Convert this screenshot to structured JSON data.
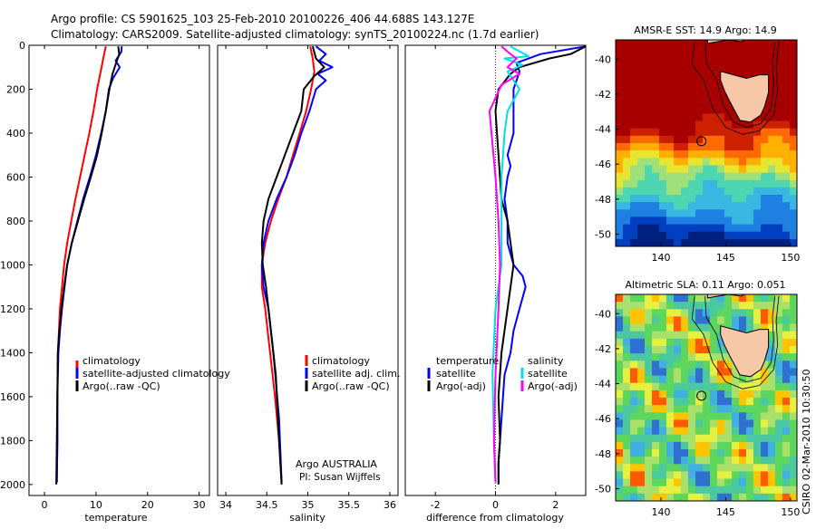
{
  "header": {
    "line1": "Argo profile: CS 5901625_103 25-Feb-2010 20100226_406 44.688S 143.127E",
    "line2": "Climatology: CARS2009. Satellite-adjusted climatology: synTS_20100224.nc (1.7d earlier)"
  },
  "credits": {
    "line1": "Argo AUSTRALIA",
    "line2": "PI: Susan Wijffels",
    "side": "CSIRO 02-Mar-2010 10:30:50"
  },
  "colors": {
    "climatology": "#ff0000",
    "satellite": "#0000ff",
    "argo": "#000000",
    "sal_satellite": "#00e0e0",
    "sal_argo": "#ff00ff"
  },
  "chart_data": [
    {
      "type": "line",
      "xlabel": "temperature",
      "ylabel": "",
      "xlim": [
        -3,
        32
      ],
      "ylim": [
        2050,
        0
      ],
      "xticks": [
        "0",
        "10",
        "20",
        "30"
      ],
      "yticks": [
        "0",
        "200",
        "400",
        "600",
        "800",
        "1000",
        "1200",
        "1400",
        "1600",
        "1800",
        "2000"
      ],
      "legend_position": "bottom-center",
      "series": [
        {
          "name": "climatology",
          "x": [
            11.9,
            11.5,
            10.9,
            10.2,
            9.5,
            8.7,
            7.8,
            6.9,
            6.0,
            5.2,
            4.4,
            3.8,
            3.4,
            3.0,
            2.8,
            2.6,
            2.5,
            2.5,
            2.4
          ],
          "y": [
            5,
            50,
            120,
            200,
            300,
            400,
            500,
            600,
            700,
            800,
            900,
            1000,
            1100,
            1200,
            1300,
            1400,
            1600,
            1800,
            1990
          ]
        },
        {
          "name": "satellite-adjusted climatology",
          "x": [
            15.0,
            14.9,
            13.8,
            14.6,
            13.3,
            12.5,
            11.9,
            11.0,
            10.0,
            8.8,
            7.5,
            6.4,
            5.3,
            4.4,
            3.9,
            3.4,
            3.0,
            2.7,
            2.5,
            2.5,
            2.4
          ],
          "y": [
            5,
            30,
            70,
            100,
            150,
            200,
            300,
            400,
            500,
            600,
            700,
            800,
            900,
            1000,
            1100,
            1200,
            1300,
            1400,
            1600,
            1800,
            1990
          ]
        },
        {
          "name": "Argo(..raw -QC)",
          "x": [
            14.3,
            14.5,
            13.9,
            13.2,
            12.6,
            11.9,
            11.1,
            10.2,
            9.0,
            7.7,
            6.5,
            5.3,
            4.4,
            3.8,
            3.3,
            2.9,
            2.6,
            2.5,
            2.4,
            2.3
          ],
          "y": [
            5,
            40,
            80,
            130,
            200,
            300,
            400,
            500,
            600,
            700,
            800,
            900,
            1000,
            1100,
            1200,
            1300,
            1400,
            1600,
            1800,
            2000
          ]
        }
      ]
    },
    {
      "type": "line",
      "xlabel": "salinity",
      "ylabel": "",
      "xlim": [
        33.9,
        36.1
      ],
      "ylim": [
        2050,
        0
      ],
      "xticks": [
        "34",
        "34.5",
        "35",
        "35.5",
        "36"
      ],
      "legend_position": "bottom-center",
      "series": [
        {
          "name": "climatology",
          "x": [
            35.03,
            35.06,
            35.08,
            35.04,
            34.98,
            34.9,
            34.82,
            34.74,
            34.64,
            34.55,
            34.48,
            34.44,
            34.44,
            34.48,
            34.54,
            34.6,
            34.65,
            34.68
          ],
          "y": [
            5,
            60,
            120,
            200,
            300,
            400,
            500,
            600,
            700,
            800,
            900,
            1000,
            1100,
            1200,
            1400,
            1600,
            1800,
            1990
          ]
        },
        {
          "name": "satellite adj. clim.",
          "x": [
            35.1,
            35.22,
            35.14,
            35.3,
            35.12,
            35.22,
            35.1,
            35.02,
            34.92,
            34.84,
            34.74,
            34.62,
            34.52,
            34.46,
            34.44,
            34.46,
            34.52,
            34.58,
            34.65,
            34.68
          ],
          "y": [
            5,
            40,
            70,
            100,
            130,
            160,
            200,
            300,
            400,
            500,
            600,
            700,
            800,
            900,
            1000,
            1100,
            1200,
            1400,
            1700,
            1990
          ]
        },
        {
          "name": "Argo(..raw -QC)",
          "x": [
            35.06,
            35.1,
            35.2,
            35.08,
            34.95,
            34.92,
            34.82,
            34.72,
            34.62,
            34.52,
            34.46,
            34.44,
            34.45,
            34.49,
            34.55,
            34.61,
            34.65,
            34.68
          ],
          "y": [
            5,
            60,
            100,
            140,
            200,
            300,
            400,
            500,
            600,
            700,
            800,
            900,
            1000,
            1100,
            1300,
            1500,
            1800,
            2000
          ]
        }
      ]
    },
    {
      "type": "line",
      "xlabel": "difference from climatology",
      "ylabel": "",
      "xlim": [
        -3,
        3
      ],
      "ylim": [
        2050,
        0
      ],
      "xticks": [
        "-2",
        "0",
        "2"
      ],
      "legend_position": "bottom-center",
      "legend_titles": [
        "temperature",
        "salinity"
      ],
      "series": [
        {
          "name": "temperature satellite",
          "x": [
            3.0,
            1.5,
            0.7,
            0.8,
            0.6,
            0.6,
            0.4,
            0.5,
            0.4,
            0.3,
            0.4,
            0.4,
            0.5,
            0.6,
            0.9,
            1.0,
            0.8,
            0.6,
            0.5,
            0.3,
            0.25,
            0.15,
            0.1,
            0.1
          ],
          "y": [
            5,
            40,
            80,
            120,
            200,
            400,
            500,
            550,
            600,
            700,
            800,
            900,
            950,
            1000,
            1050,
            1100,
            1200,
            1300,
            1400,
            1500,
            1600,
            1800,
            1900,
            1990
          ]
        },
        {
          "name": "temperature Argo(-adj)",
          "x": [
            3.0,
            2.5,
            1.8,
            0.8,
            0.5,
            0.1,
            0.0,
            0.1,
            0.2,
            0.4,
            0.5,
            0.6,
            0.5,
            0.4,
            0.2,
            0.1,
            0.15,
            0.1,
            0.1
          ],
          "y": [
            5,
            40,
            60,
            100,
            130,
            200,
            300,
            500,
            700,
            800,
            900,
            1000,
            1100,
            1200,
            1400,
            1600,
            1800,
            1900,
            2000
          ]
        },
        {
          "name": "salinity satellite",
          "x": [
            0.5,
            1.1,
            0.3,
            0.9,
            0.4,
            0.8,
            0.6,
            0.4,
            0.3,
            0.2,
            0.2,
            0.0,
            -0.1,
            -0.05,
            0.0
          ],
          "y": [
            5,
            50,
            60,
            90,
            120,
            200,
            250,
            300,
            400,
            600,
            1000,
            1200,
            1500,
            1800,
            1990
          ]
        },
        {
          "name": "salinity Argo(-adj)",
          "x": [
            0.2,
            0.5,
            0.7,
            0.4,
            0.8,
            0.2,
            -0.2,
            0.0,
            0.1,
            0.15,
            0.1,
            0.0,
            -0.05,
            0.0
          ],
          "y": [
            5,
            40,
            60,
            100,
            130,
            180,
            300,
            600,
            800,
            1000,
            1200,
            1500,
            1800,
            1990
          ]
        }
      ]
    },
    {
      "type": "heatmap",
      "title": "AMSR-E SST: 14.9 Argo: 14.9",
      "xlim": [
        136.5,
        150.5
      ],
      "ylim": [
        -50.7,
        -38.9
      ],
      "xticks": [
        "140",
        "145",
        "150"
      ],
      "yticks": [
        "-40",
        "-42",
        "-44",
        "-46",
        "-48",
        "-50"
      ],
      "marker": {
        "lon": 143.127,
        "lat": -44.688
      }
    },
    {
      "type": "heatmap",
      "title": "Altimetric SLA: 0.11 Argo: 0.051",
      "xlim": [
        136.5,
        150.5
      ],
      "ylim": [
        -50.7,
        -38.9
      ],
      "xticks": [
        "140",
        "145",
        "150"
      ],
      "yticks": [
        "-40",
        "-42",
        "-44",
        "-46",
        "-48",
        "-50"
      ],
      "marker": {
        "lon": 143.127,
        "lat": -44.688
      }
    }
  ]
}
